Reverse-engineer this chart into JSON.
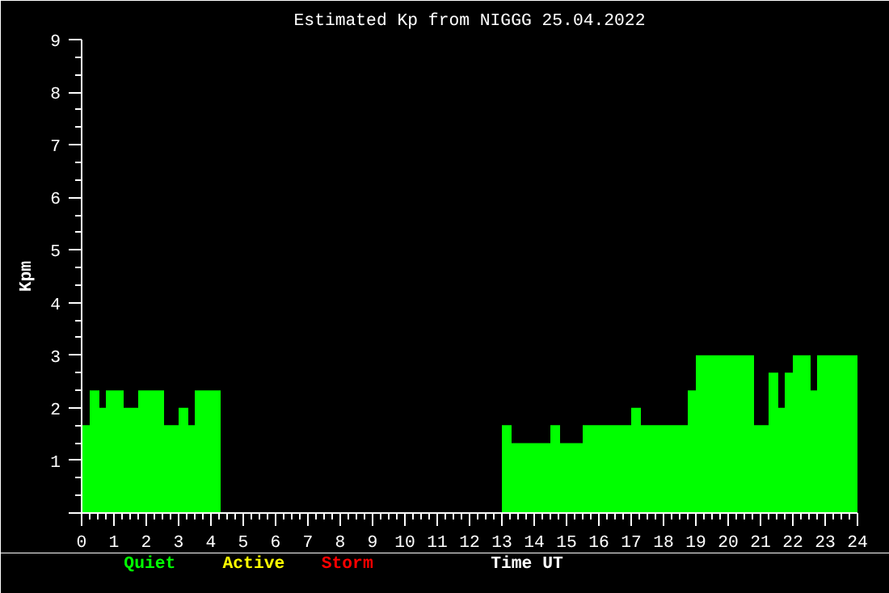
{
  "chart_data": {
    "type": "histogram",
    "title": "Estimated Kp from NIGGG 25.04.2022",
    "xlabel": "Time UT",
    "ylabel": "Kpm",
    "bins": [
      0,
      0.25,
      0.55,
      0.75,
      1.3,
      1.75,
      2.55,
      3.0,
      3.3,
      3.5,
      4.3,
      13.0,
      13.3,
      14.5,
      14.8,
      15.5,
      17.0,
      17.3,
      18.75,
      19.0,
      20.8,
      21.25,
      21.55,
      21.75,
      22.0,
      22.55,
      22.75,
      24
    ],
    "series": [
      {
        "name": "Quiet",
        "color": "#00ff00",
        "values": [
          1.67,
          2.33,
          2.0,
          2.33,
          2.0,
          2.33,
          1.67,
          2.0,
          1.67,
          2.33,
          null,
          1.67,
          1.33,
          1.67,
          1.33,
          1.67,
          2.0,
          1.67,
          2.33,
          3.0,
          1.67,
          2.67,
          2.0,
          2.67,
          3.0,
          2.33,
          3.0
        ]
      }
    ],
    "annotations": [
      "Active",
      "Storm"
    ],
    "xlim": [
      0,
      24
    ],
    "xticks": [
      0,
      1,
      2,
      3,
      4,
      5,
      6,
      7,
      8,
      9,
      10,
      11,
      12,
      13,
      14,
      15,
      16,
      17,
      18,
      19,
      20,
      21,
      22,
      23,
      24
    ],
    "ylim": [
      0,
      9
    ],
    "yticks": [
      {
        "value": 0,
        "label": null
      },
      1,
      2,
      3,
      4,
      5,
      6,
      7,
      8,
      9
    ]
  }
}
